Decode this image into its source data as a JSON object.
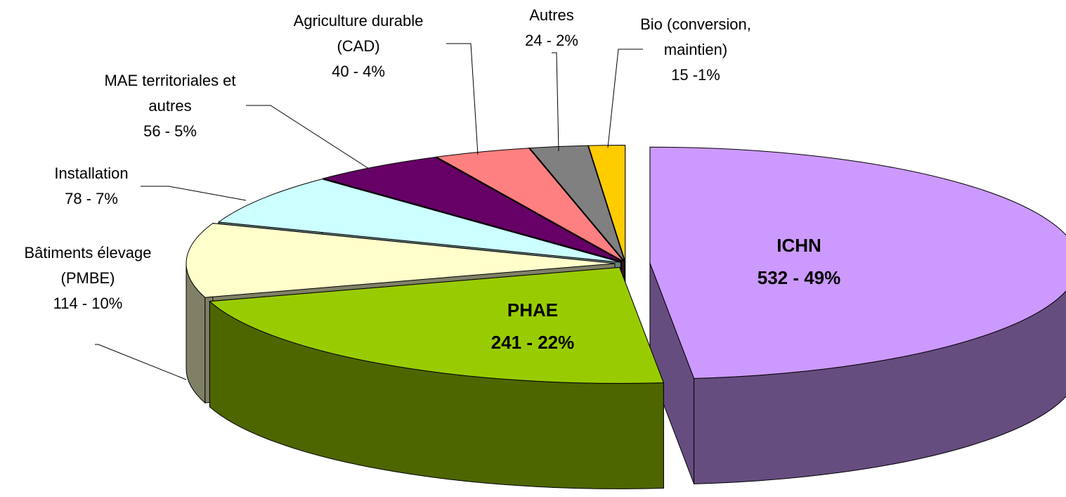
{
  "chart_data": {
    "type": "pie3d",
    "categories": [
      "ICHN",
      "PHAE",
      "Bâtiments élevage (PMBE)",
      "Installation",
      "MAE territoriales et autres",
      "Agriculture durable (CAD)",
      "Autres",
      "Bio (conversion, maintien)"
    ],
    "values": [
      532,
      241,
      114,
      78,
      56,
      40,
      24,
      15
    ],
    "value_labels": [
      "532 - 49%",
      "241 - 22%",
      "114 - 10%",
      "78 - 7%",
      "56 - 5%",
      "40 - 4%",
      "24 - 2%",
      "15 -1%"
    ],
    "colors": [
      "#cc99ff",
      "#99cc00",
      "#ffffcc",
      "#ccffff",
      "#660066",
      "#ff8080",
      "#808080",
      "#ffcc00"
    ]
  }
}
